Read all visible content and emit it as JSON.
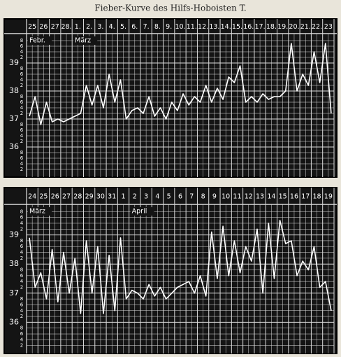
{
  "chart_data": [
    {
      "type": "line",
      "title": "Fieber-Kurve des Hilfs-Hoboisten T.",
      "categories": [
        "25",
        null,
        "26",
        null,
        "27",
        null,
        "28.",
        null,
        "1.",
        null,
        "2.",
        null,
        "3.",
        null,
        "4.",
        null,
        "5.",
        null,
        "6.",
        null,
        "7.",
        null,
        "8.",
        null,
        "9.",
        null,
        "10.",
        null,
        "11.",
        null,
        "12.",
        null,
        "13.",
        null,
        "14.",
        null,
        "15.",
        null,
        "16.",
        null,
        "17.",
        null,
        "18.",
        null,
        "19.",
        null,
        "20.",
        null,
        "21.",
        null,
        "22.",
        null,
        "23",
        null
      ],
      "annotations": [
        {
          "text": "Febr.",
          "category": "25"
        },
        {
          "text": "März",
          "category": "1."
        }
      ],
      "series": [
        {
          "color": "#ffffff",
          "values": [
            37.1,
            37.8,
            36.8,
            37.6,
            36.9,
            37.0,
            36.9,
            37.0,
            37.1,
            37.2,
            38.2,
            37.5,
            38.2,
            37.4,
            38.6,
            37.6,
            38.4,
            37.0,
            37.3,
            37.4,
            37.2,
            37.8,
            37.1,
            37.4,
            37.0,
            37.6,
            37.3,
            37.9,
            37.5,
            37.8,
            37.6,
            38.2,
            37.6,
            38.1,
            37.7,
            38.5,
            38.3,
            38.9,
            37.6,
            37.8,
            37.6,
            37.9,
            37.7,
            37.8,
            37.8,
            38.0,
            39.7,
            38.0,
            38.6,
            38.2,
            39.4,
            38.3,
            39.7,
            37.2
          ]
        }
      ],
      "ylim": [
        35,
        40
      ],
      "yticks": [
        {
          "value": 35.2,
          "label": "2"
        },
        {
          "value": 35.4,
          "label": "4"
        },
        {
          "value": 35.6,
          "label": "6"
        },
        {
          "value": 35.8,
          "label": "8"
        },
        36,
        {
          "value": 36.2,
          "label": "2"
        },
        {
          "value": 36.4,
          "label": "4"
        },
        {
          "value": 36.6,
          "label": "6"
        },
        {
          "value": 36.8,
          "label": "8"
        },
        37,
        {
          "value": 37.2,
          "label": "2"
        },
        {
          "value": 37.4,
          "label": "4"
        },
        {
          "value": 37.6,
          "label": "6"
        },
        {
          "value": 37.8,
          "label": "8"
        },
        38,
        {
          "value": 38.2,
          "label": "2"
        },
        {
          "value": 38.4,
          "label": "4"
        },
        {
          "value": 38.6,
          "label": "6"
        },
        {
          "value": 38.8,
          "label": "8"
        },
        39,
        {
          "value": 39.2,
          "label": "2"
        },
        {
          "value": 39.4,
          "label": "4"
        },
        {
          "value": 39.6,
          "label": "6"
        },
        {
          "value": 39.8,
          "label": "8"
        }
      ],
      "grid": true
    },
    {
      "type": "line",
      "categories": [
        "24",
        null,
        "25",
        null,
        "26",
        null,
        "27",
        null,
        "28",
        null,
        "29",
        null,
        "30",
        null,
        "31",
        null,
        "1",
        null,
        "2",
        null,
        "3",
        null,
        "4",
        null,
        "5",
        null,
        "6",
        null,
        "7",
        null,
        "8",
        null,
        "9",
        null,
        "10",
        null,
        "11",
        null,
        "12",
        null,
        "13",
        null,
        "14",
        null,
        "15",
        null,
        "16",
        null,
        "17",
        null,
        "18",
        null,
        "19",
        null
      ],
      "annotations": [
        {
          "text": "März",
          "category": "24"
        },
        {
          "text": "April",
          "category": "2"
        }
      ],
      "series": [
        {
          "color": "#ffffff",
          "values": [
            38.9,
            37.2,
            37.7,
            36.8,
            38.5,
            36.7,
            38.4,
            37.0,
            38.2,
            36.3,
            38.8,
            37.0,
            38.6,
            36.3,
            38.3,
            36.4,
            38.9,
            36.8,
            37.1,
            37.0,
            36.8,
            37.3,
            36.9,
            37.2,
            36.8,
            37.0,
            37.2,
            37.3,
            37.4,
            37.0,
            37.6,
            36.9,
            39.1,
            37.5,
            39.3,
            37.6,
            38.8,
            37.7,
            38.6,
            38.1,
            39.2,
            37.0,
            39.4,
            37.5,
            39.5,
            38.7,
            38.8,
            37.6,
            38.1,
            37.8,
            38.6,
            37.2,
            37.4,
            36.4
          ]
        }
      ],
      "ylim": [
        35,
        40
      ],
      "yticks": [
        {
          "value": 35.2,
          "label": "2"
        },
        {
          "value": 35.4,
          "label": "4"
        },
        {
          "value": 35.6,
          "label": "6"
        },
        {
          "value": 35.8,
          "label": "8"
        },
        36,
        {
          "value": 36.2,
          "label": "2"
        },
        {
          "value": 36.4,
          "label": "4"
        },
        {
          "value": 36.6,
          "label": "6"
        },
        {
          "value": 36.8,
          "label": "8"
        },
        37,
        {
          "value": 37.2,
          "label": "2"
        },
        {
          "value": 37.4,
          "label": "4"
        },
        {
          "value": 37.6,
          "label": "6"
        },
        {
          "value": 37.8,
          "label": "8"
        },
        38,
        {
          "value": 38.2,
          "label": "2"
        },
        {
          "value": 38.4,
          "label": "4"
        },
        {
          "value": 38.6,
          "label": "6"
        },
        {
          "value": 38.8,
          "label": "8"
        },
        39,
        {
          "value": 39.2,
          "label": "2"
        },
        {
          "value": 39.4,
          "label": "4"
        },
        {
          "value": 39.6,
          "label": "6"
        },
        {
          "value": 39.8,
          "label": "8"
        }
      ],
      "grid": true
    }
  ]
}
